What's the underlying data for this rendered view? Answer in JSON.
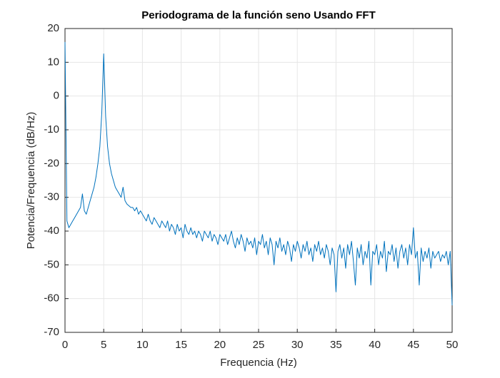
{
  "chart_data": {
    "type": "line",
    "title": "Periodograma de la función seno Usando FFT",
    "xlabel": "Frequencia (Hz)",
    "ylabel": "Potencia/Frequencia (dB/Hz)",
    "xlim": [
      0,
      50
    ],
    "ylim": [
      -70,
      20
    ],
    "xticks": [
      0,
      5,
      10,
      15,
      20,
      25,
      30,
      35,
      40,
      45,
      50
    ],
    "yticks": [
      -70,
      -60,
      -50,
      -40,
      -30,
      -20,
      -10,
      0,
      10,
      20
    ],
    "grid": true,
    "x": [
      0,
      0.25,
      0.5,
      0.75,
      1,
      1.25,
      1.5,
      1.75,
      2,
      2.25,
      2.5,
      2.75,
      3,
      3.25,
      3.5,
      3.75,
      4,
      4.25,
      4.5,
      4.75,
      5,
      5.25,
      5.5,
      5.75,
      6,
      6.25,
      6.5,
      6.75,
      7,
      7.25,
      7.5,
      7.75,
      8,
      8.25,
      8.5,
      8.75,
      9,
      9.25,
      9.5,
      9.75,
      10,
      10.25,
      10.5,
      10.75,
      11,
      11.25,
      11.5,
      11.75,
      12,
      12.25,
      12.5,
      12.75,
      13,
      13.25,
      13.5,
      13.75,
      14,
      14.25,
      14.5,
      14.75,
      15,
      15.25,
      15.5,
      15.75,
      16,
      16.25,
      16.5,
      16.75,
      17,
      17.25,
      17.5,
      17.75,
      18,
      18.25,
      18.5,
      18.75,
      19,
      19.25,
      19.5,
      19.75,
      20,
      20.25,
      20.5,
      20.75,
      21,
      21.25,
      21.5,
      21.75,
      22,
      22.25,
      22.5,
      22.75,
      23,
      23.25,
      23.5,
      23.75,
      24,
      24.25,
      24.5,
      24.75,
      25,
      25.25,
      25.5,
      25.75,
      26,
      26.25,
      26.5,
      26.75,
      27,
      27.25,
      27.5,
      27.75,
      28,
      28.25,
      28.5,
      28.75,
      29,
      29.25,
      29.5,
      29.75,
      30,
      30.25,
      30.5,
      30.75,
      31,
      31.25,
      31.5,
      31.75,
      32,
      32.25,
      32.5,
      32.75,
      33,
      33.25,
      33.5,
      33.75,
      34,
      34.25,
      34.5,
      34.75,
      35,
      35.25,
      35.5,
      35.75,
      36,
      36.25,
      36.5,
      36.75,
      37,
      37.25,
      37.5,
      37.75,
      38,
      38.25,
      38.5,
      38.75,
      39,
      39.25,
      39.5,
      39.75,
      40,
      40.25,
      40.5,
      40.75,
      41,
      41.25,
      41.5,
      41.75,
      42,
      42.25,
      42.5,
      42.75,
      43,
      43.25,
      43.5,
      43.75,
      44,
      44.25,
      44.5,
      44.75,
      45,
      45.25,
      45.5,
      45.75,
      46,
      46.25,
      46.5,
      46.75,
      47,
      47.25,
      47.5,
      47.75,
      48,
      48.25,
      48.5,
      48.75,
      49,
      49.25,
      49.5,
      49.75,
      50
    ],
    "series": [
      {
        "color": "#0072bd",
        "values": [
          16,
          -37,
          -39,
          -38,
          -37,
          -36,
          -35,
          -34,
          -33,
          -29,
          -34,
          -35,
          -33,
          -31,
          -29,
          -27,
          -24,
          -20,
          -15,
          -5,
          12.5,
          -6,
          -15,
          -20,
          -23,
          -25,
          -27,
          -28,
          -29,
          -30,
          -27,
          -31,
          -32,
          -32.5,
          -33,
          -33,
          -34,
          -33,
          -35,
          -34,
          -35,
          -36,
          -37,
          -35,
          -37,
          -38,
          -36,
          -37,
          -38,
          -39,
          -37,
          -38,
          -39,
          -37,
          -40,
          -38,
          -39,
          -41,
          -38,
          -40,
          -39,
          -42,
          -38,
          -40,
          -41,
          -39,
          -41,
          -40,
          -42,
          -40,
          -41,
          -43,
          -40,
          -41,
          -42,
          -40,
          -43,
          -41,
          -42,
          -44,
          -41,
          -42,
          -43,
          -41,
          -44,
          -42,
          -40,
          -43,
          -45,
          -42,
          -44,
          -41,
          -43,
          -46,
          -42,
          -44,
          -43,
          -45,
          -42,
          -47,
          -43,
          -44,
          -41,
          -45,
          -43,
          -47,
          -42,
          -44,
          -50,
          -43,
          -45,
          -42,
          -46,
          -44,
          -47,
          -43,
          -45,
          -49,
          -44,
          -46,
          -43,
          -45,
          -48,
          -44,
          -46,
          -43,
          -47,
          -45,
          -49,
          -44,
          -46,
          -43,
          -47,
          -45,
          -48,
          -44,
          -46,
          -50,
          -45,
          -47,
          -58,
          -46,
          -44,
          -48,
          -45,
          -51,
          -44,
          -47,
          -43,
          -49,
          -56,
          -45,
          -48,
          -44,
          -50,
          -46,
          -48,
          -43,
          -56,
          -46,
          -47,
          -44,
          -50,
          -46,
          -48,
          -43,
          -52,
          -46,
          -47,
          -44,
          -49,
          -45,
          -51,
          -46,
          -44,
          -48,
          -45,
          -50,
          -44,
          -47,
          -39,
          -48,
          -46,
          -56,
          -45,
          -49,
          -46,
          -48,
          -45,
          -51,
          -46,
          -48,
          -47,
          -46,
          -49,
          -47,
          -48,
          -46,
          -50,
          -46,
          -62
        ]
      }
    ]
  }
}
